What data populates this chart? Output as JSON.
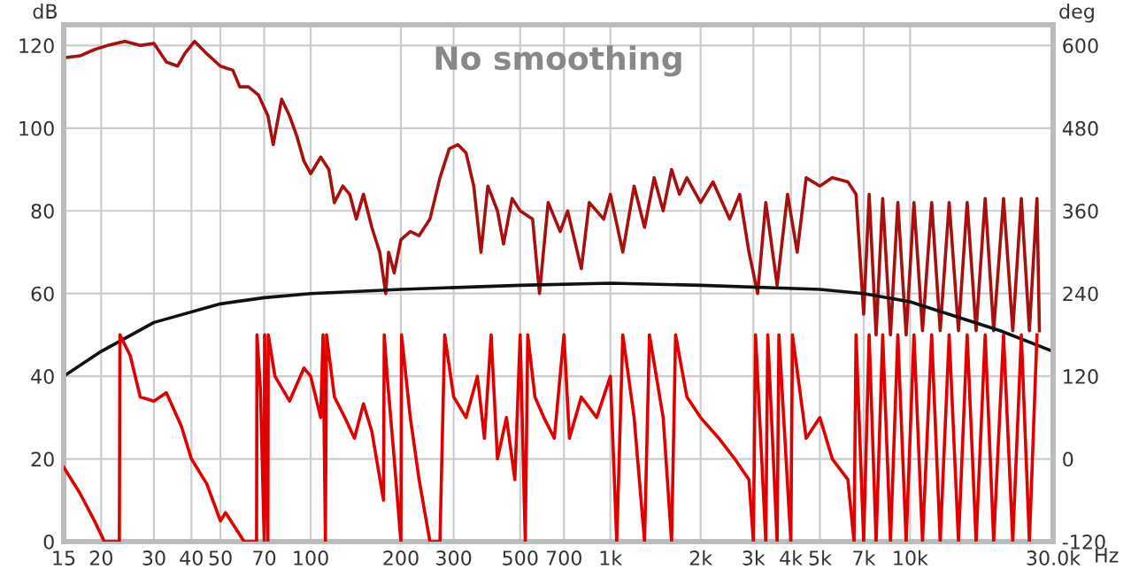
{
  "chart_data": {
    "type": "line",
    "title": "No smoothing",
    "ylabel": "dB",
    "y2label": "deg",
    "xlabel": "Hz",
    "log": "x",
    "grid": true,
    "marker": "none",
    "line_style": "solid",
    "xlim": [
      15,
      30000
    ],
    "xticks": [
      15,
      20,
      30,
      40,
      50,
      70,
      100,
      200,
      300,
      500,
      700,
      {
        "value": 1000,
        "label": "1k"
      },
      {
        "value": 2000,
        "label": "2k"
      },
      {
        "value": 3000,
        "label": "3k"
      },
      {
        "value": 4000,
        "label": "4k"
      },
      {
        "value": 5000,
        "label": "5k"
      },
      {
        "value": 7000,
        "label": "7k"
      },
      {
        "value": 10000,
        "label": "10k"
      },
      {
        "value": 30000,
        "label": "30.0k"
      }
    ],
    "ylim": [
      0,
      125
    ],
    "yticks": [
      0,
      20,
      40,
      60,
      80,
      100,
      120
    ],
    "y2lim": [
      -120,
      630
    ],
    "y2ticks": [
      -120,
      0,
      120,
      240,
      360,
      480,
      600
    ],
    "series": [
      {
        "color": "#e00000",
        "axis": "y2",
        "x": [
          15,
          17,
          19,
          20.5,
          23,
          23.1,
          25,
          27,
          30,
          33,
          37,
          40,
          45,
          50,
          52,
          60,
          66,
          66.2,
          68,
          70,
          70.2,
          72,
          72.2,
          76,
          85,
          95,
          100,
          108,
          110,
          112,
          113,
          120,
          130,
          140,
          150,
          160,
          175,
          176,
          180,
          190,
          200,
          201,
          215,
          230,
          250,
          270,
          280,
          300,
          330,
          360,
          380,
          400,
          420,
          450,
          480,
          500,
          520,
          530,
          560,
          600,
          650,
          700,
          730,
          800,
          900,
          1000,
          1050,
          1100,
          1200,
          1300,
          1350,
          1500,
          1600,
          1650,
          1800,
          2000,
          2300,
          2600,
          2900,
          3000,
          3050,
          3300,
          3350,
          3600,
          3650,
          4000,
          4050,
          4500,
          5000,
          5500,
          6200,
          6500,
          6600,
          7000,
          7300,
          7700,
          8100,
          8600,
          9100,
          9700,
          10300,
          11000,
          11800,
          12600,
          13500,
          14500,
          15500,
          16600,
          17800,
          19000,
          20500,
          22000,
          23500,
          25000,
          26500
        ],
        "values": [
          -12,
          -50,
          -90,
          -120,
          -120,
          180,
          150,
          90,
          84,
          96,
          48,
          0,
          -36,
          -90,
          -78,
          -120,
          -120,
          180,
          100,
          -120,
          180,
          -120,
          180,
          120,
          84,
          132,
          120,
          60,
          180,
          -120,
          180,
          90,
          60,
          30,
          80,
          40,
          -60,
          180,
          120,
          0,
          -120,
          180,
          60,
          -30,
          -120,
          -120,
          180,
          90,
          60,
          120,
          30,
          180,
          0,
          60,
          -30,
          180,
          -120,
          180,
          90,
          60,
          30,
          180,
          30,
          90,
          60,
          120,
          -120,
          180,
          60,
          -120,
          180,
          60,
          -120,
          180,
          90,
          60,
          30,
          0,
          -30,
          -120,
          180,
          -120,
          180,
          -120,
          180,
          -120,
          180,
          30,
          60,
          0,
          -30,
          -120,
          180,
          -120,
          180,
          -120,
          180,
          -120,
          180,
          -120,
          180,
          -120,
          180,
          -120,
          180,
          -120,
          180,
          -120,
          180,
          -120,
          180,
          -120,
          180,
          -120,
          180
        ]
      },
      {
        "color": "#a81010",
        "x": [
          15,
          17,
          19,
          21,
          24,
          27,
          30,
          33,
          36,
          38,
          41,
          45,
          50,
          55,
          58,
          62,
          67,
          72,
          75,
          80,
          85,
          90,
          95,
          100,
          108,
          115,
          120,
          128,
          135,
          142,
          150,
          160,
          170,
          178,
          182,
          190,
          200,
          215,
          230,
          250,
          270,
          290,
          310,
          330,
          350,
          370,
          390,
          420,
          440,
          470,
          500,
          550,
          580,
          620,
          680,
          720,
          800,
          850,
          950,
          1000,
          1100,
          1200,
          1300,
          1400,
          1500,
          1600,
          1700,
          1800,
          2000,
          2200,
          2500,
          2700,
          2900,
          3100,
          3300,
          3600,
          3900,
          4200,
          4500,
          5000,
          5500,
          6200,
          6600,
          7000,
          7300,
          7700,
          8100,
          8600,
          9100,
          9700,
          10300,
          11000,
          11800,
          12600,
          13500,
          14500,
          15500,
          16600,
          17800,
          19000,
          20500,
          22000,
          23500,
          25000,
          26500,
          27000
        ],
        "values": [
          117,
          117.5,
          119,
          120,
          121,
          120,
          120.5,
          116,
          115,
          118,
          121,
          118,
          115,
          114,
          110,
          110,
          108,
          103,
          96,
          107,
          103,
          98,
          92,
          89,
          93,
          90,
          82,
          86,
          84,
          78,
          84,
          76,
          70,
          60,
          70,
          65,
          73,
          75,
          74,
          78,
          88,
          95,
          96,
          94,
          86,
          70,
          86,
          80,
          72,
          83,
          80,
          78,
          60,
          82,
          75,
          80,
          66,
          82,
          78,
          84,
          70,
          86,
          76,
          88,
          80,
          90,
          84,
          88,
          82,
          87,
          78,
          84,
          70,
          60,
          82,
          62,
          84,
          70,
          88,
          86,
          88,
          87,
          84,
          55,
          84,
          50,
          83,
          50,
          82,
          50,
          82,
          51,
          82,
          51,
          82,
          51,
          82,
          51,
          83,
          51,
          83,
          51,
          83,
          51,
          83,
          51
        ]
      },
      {
        "color": "#111111",
        "x": [
          15,
          20,
          30,
          50,
          70,
          100,
          200,
          500,
          1000,
          2000,
          5000,
          7000,
          10000,
          20000,
          30000
        ],
        "values": [
          40,
          46,
          53,
          57.5,
          59,
          60,
          61,
          62,
          62.5,
          62,
          61,
          60,
          58,
          51,
          46
        ]
      }
    ]
  }
}
